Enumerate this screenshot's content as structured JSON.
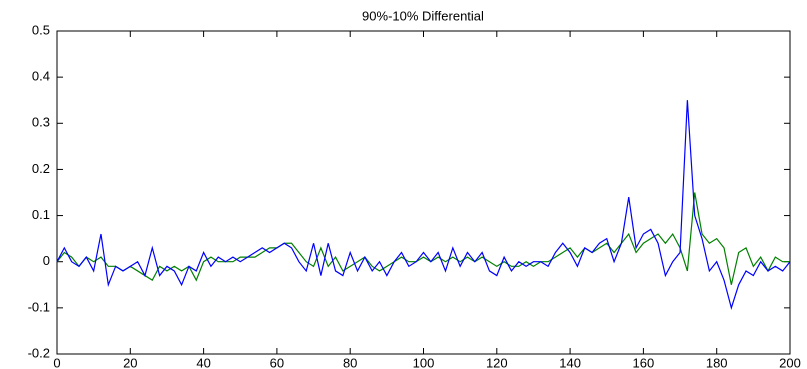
{
  "chart_data": {
    "type": "line",
    "title": "90%-10% Differential",
    "x": [
      0,
      2,
      4,
      6,
      8,
      10,
      12,
      14,
      16,
      18,
      20,
      22,
      24,
      26,
      28,
      30,
      32,
      34,
      36,
      38,
      40,
      42,
      44,
      46,
      48,
      50,
      52,
      54,
      56,
      58,
      60,
      62,
      64,
      66,
      68,
      70,
      72,
      74,
      76,
      78,
      80,
      82,
      84,
      86,
      88,
      90,
      92,
      94,
      96,
      98,
      100,
      102,
      104,
      106,
      108,
      110,
      112,
      114,
      116,
      118,
      120,
      122,
      124,
      126,
      128,
      130,
      132,
      134,
      136,
      138,
      140,
      142,
      144,
      146,
      148,
      150,
      152,
      154,
      156,
      158,
      160,
      162,
      164,
      166,
      168,
      170,
      172,
      174,
      176,
      178,
      180,
      182,
      184,
      186,
      188,
      190,
      192,
      194,
      196,
      198,
      200
    ],
    "series": [
      {
        "color": "#008000",
        "values": [
          0,
          0.02,
          0.01,
          -0.01,
          0.01,
          0,
          0.01,
          -0.01,
          -0.01,
          -0.02,
          -0.01,
          -0.02,
          -0.03,
          -0.04,
          -0.01,
          -0.02,
          -0.01,
          -0.02,
          -0.01,
          -0.04,
          0,
          0.01,
          0,
          0,
          0,
          0.01,
          0.01,
          0.01,
          0.02,
          0.03,
          0.03,
          0.04,
          0.04,
          0.02,
          0,
          -0.01,
          0.03,
          -0.01,
          0.01,
          -0.02,
          -0.01,
          0,
          0.01,
          -0.01,
          -0.02,
          -0.01,
          0,
          0.01,
          0,
          0,
          0.01,
          0,
          0.01,
          0,
          0.01,
          0,
          0.01,
          0,
          0.01,
          0,
          -0.01,
          0,
          -0.01,
          -0.01,
          0,
          -0.01,
          0,
          0,
          0.01,
          0.02,
          0.03,
          0.01,
          0.03,
          0.02,
          0.03,
          0.04,
          0.02,
          0.04,
          0.06,
          0.02,
          0.04,
          0.05,
          0.06,
          0.04,
          0.06,
          0.03,
          -0.02,
          0.15,
          0.06,
          0.04,
          0.05,
          0.03,
          -0.05,
          0.02,
          0.03,
          -0.01,
          0.01,
          -0.02,
          0.01,
          0,
          0
        ]
      },
      {
        "color": "#0000ff",
        "values": [
          0,
          0.03,
          0,
          -0.01,
          0.01,
          -0.02,
          0.06,
          -0.05,
          -0.01,
          -0.02,
          -0.01,
          0,
          -0.03,
          0.03,
          -0.03,
          -0.01,
          -0.02,
          -0.05,
          -0.01,
          -0.02,
          0.02,
          -0.01,
          0.01,
          0,
          0.01,
          0,
          0.01,
          0.02,
          0.03,
          0.02,
          0.03,
          0.04,
          0.03,
          0,
          -0.02,
          0.04,
          -0.03,
          0.04,
          -0.02,
          -0.03,
          0.02,
          -0.02,
          0.01,
          -0.02,
          0,
          -0.03,
          0,
          0.02,
          -0.01,
          0,
          0.02,
          0,
          0.02,
          -0.02,
          0.03,
          -0.01,
          0.02,
          0,
          0.02,
          -0.02,
          -0.03,
          0.01,
          -0.02,
          0,
          -0.01,
          0,
          0,
          -0.01,
          0.02,
          0.04,
          0.02,
          -0.01,
          0.03,
          0.02,
          0.04,
          0.05,
          0,
          0.04,
          0.14,
          0.03,
          0.06,
          0.07,
          0.04,
          -0.03,
          0,
          0.02,
          0.35,
          0.1,
          0.05,
          -0.02,
          0,
          -0.04,
          -0.1,
          -0.05,
          -0.02,
          -0.03,
          0,
          -0.02,
          -0.01,
          -0.02,
          0
        ]
      }
    ],
    "xlim": [
      0,
      200
    ],
    "xticks": [
      0,
      20,
      40,
      60,
      80,
      100,
      120,
      140,
      160,
      180,
      200
    ],
    "ylim": [
      -0.2,
      0.5
    ],
    "yticks": [
      -0.2,
      -0.1,
      0,
      0.1,
      0.2,
      0.3,
      0.4,
      0.5
    ]
  }
}
